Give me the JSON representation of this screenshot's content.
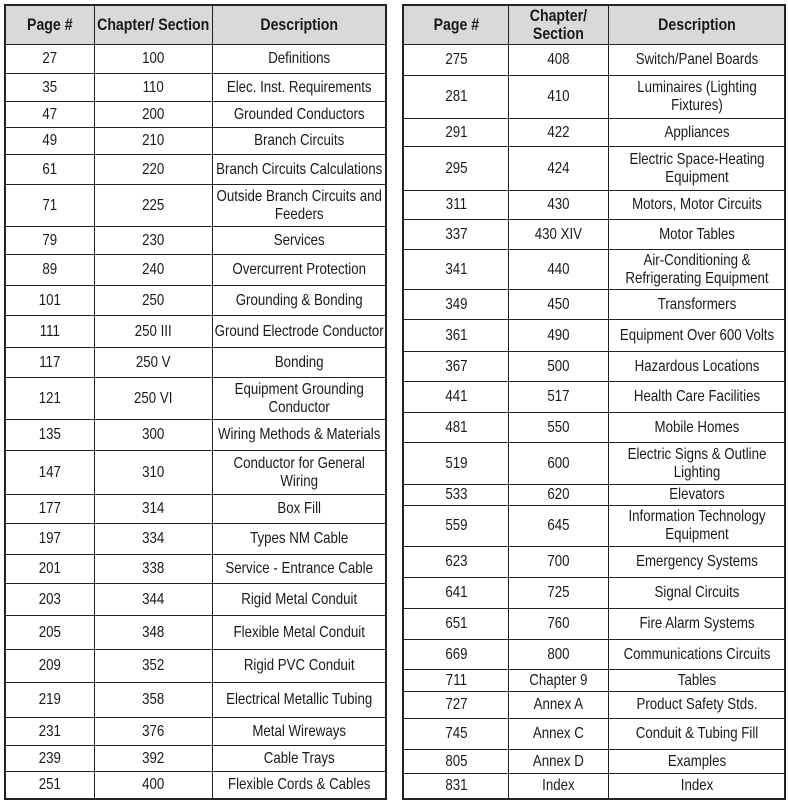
{
  "headers": [
    "Page #",
    "Chapter/ Section",
    "Description"
  ],
  "left_table": [
    [
      "27",
      "100",
      "Definitions"
    ],
    [
      "35",
      "110",
      "Elec. Inst. Requirements"
    ],
    [
      "47",
      "200",
      "Grounded Conductors"
    ],
    [
      "49",
      "210",
      "Branch Circuits"
    ],
    [
      "61",
      "220",
      "Branch Circuits Calculations"
    ],
    [
      "71",
      "225",
      "Outside Branch Circuits and Feeders"
    ],
    [
      "79",
      "230",
      "Services"
    ],
    [
      "89",
      "240",
      "Overcurrent Protection"
    ],
    [
      "101",
      "250",
      "Grounding & Bonding"
    ],
    [
      "111",
      "250 III",
      "Ground Electrode Conductor"
    ],
    [
      "117",
      "250 V",
      "Bonding"
    ],
    [
      "121",
      "250 VI",
      "Equipment Grounding Conductor"
    ],
    [
      "135",
      "300",
      "Wiring Methods & Materials"
    ],
    [
      "147",
      "310",
      "Conductor for General Wiring"
    ],
    [
      "177",
      "314",
      "Box Fill"
    ],
    [
      "197",
      "334",
      "Types NM Cable"
    ],
    [
      "201",
      "338",
      "Service - Entrance Cable"
    ],
    [
      "203",
      "344",
      "Rigid Metal Conduit"
    ],
    [
      "205",
      "348",
      "Flexible Metal Conduit"
    ],
    [
      "209",
      "352",
      "Rigid PVC Conduit"
    ],
    [
      "219",
      "358",
      "Electrical Metallic Tubing"
    ],
    [
      "231",
      "376",
      "Metal Wireways"
    ],
    [
      "239",
      "392",
      "Cable Trays"
    ],
    [
      "251",
      "400",
      "Flexible Cords & Cables"
    ]
  ],
  "right_table": [
    [
      "275",
      "408",
      "Switch/Panel Boards"
    ],
    [
      "281",
      "410",
      "Luminaires (Lighting Fixtures)"
    ],
    [
      "291",
      "422",
      "Appliances"
    ],
    [
      "295",
      "424",
      "Electric Space-Heating Equipment"
    ],
    [
      "311",
      "430",
      "Motors, Motor Circuits"
    ],
    [
      "337",
      "430 XIV",
      "Motor Tables"
    ],
    [
      "341",
      "440",
      "Air-Conditioning & Refrigerating Equipment"
    ],
    [
      "349",
      "450",
      "Transformers"
    ],
    [
      "361",
      "490",
      "Equipment Over 600 Volts"
    ],
    [
      "367",
      "500",
      "Hazardous Locations"
    ],
    [
      "441",
      "517",
      "Health Care Facilities"
    ],
    [
      "481",
      "550",
      "Mobile Homes"
    ],
    [
      "519",
      "600",
      "Electric Signs & Outline Lighting"
    ],
    [
      "533",
      "620",
      "Elevators"
    ],
    [
      "559",
      "645",
      "Information Technology Equipment"
    ],
    [
      "623",
      "700",
      "Emergency Systems"
    ],
    [
      "641",
      "725",
      "Signal Circuits"
    ],
    [
      "651",
      "760",
      "Fire Alarm Systems"
    ],
    [
      "669",
      "800",
      "Communications Circuits"
    ],
    [
      "711",
      "Chapter 9",
      "Tables"
    ],
    [
      "727",
      "Annex A",
      "Product Safety Stds."
    ],
    [
      "745",
      "Annex C",
      "Conduit & Tubing Fill"
    ],
    [
      "805",
      "Annex D",
      "Examples"
    ],
    [
      "831",
      "Index",
      "Index"
    ]
  ],
  "colors": {
    "header_bg": "#d9d9d9",
    "border": "#222222",
    "text": "#1a1a1a"
  }
}
